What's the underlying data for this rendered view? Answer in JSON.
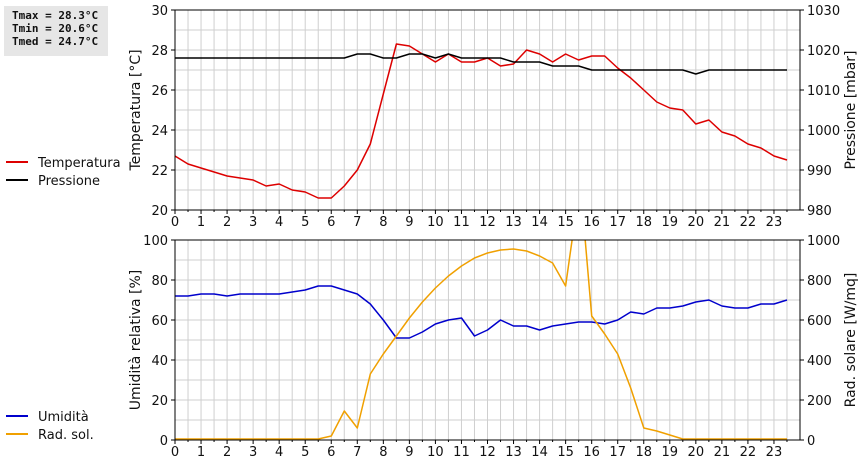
{
  "stats": {
    "tmax": "Tmax = 28.3°C",
    "tmin": "Tmin = 20.6°C",
    "tmed": "Tmed = 24.7°C"
  },
  "colors": {
    "temperatura": "#dd0000",
    "pressione": "#000000",
    "umidita": "#0000cc",
    "radsol": "#f0a000",
    "grid": "#cfcfcf"
  },
  "chart_data": [
    {
      "type": "line",
      "ylabel": "Temperatura [°C]",
      "y2label": "Pressione [mbar]",
      "ylim": [
        20,
        30
      ],
      "y2lim": [
        980,
        1030
      ],
      "xlim": [
        0,
        24
      ],
      "yticks": [
        "20",
        "22",
        "24",
        "26",
        "28",
        "30"
      ],
      "y2ticks": [
        "980",
        "990",
        "1000",
        "1010",
        "1020",
        "1030"
      ],
      "xticks": [
        "0",
        "1",
        "2",
        "3",
        "4",
        "5",
        "6",
        "7",
        "8",
        "9",
        "10",
        "11",
        "12",
        "13",
        "14",
        "15",
        "16",
        "17",
        "18",
        "19",
        "20",
        "21",
        "22",
        "23"
      ],
      "grid": true,
      "legend": [
        "Temperatura",
        "Pressione"
      ],
      "series": [
        {
          "name": "Temperatura",
          "axis": "left",
          "x": [
            0,
            0.5,
            1,
            1.5,
            2,
            2.5,
            3,
            3.5,
            4,
            4.5,
            5,
            5.5,
            6,
            6.5,
            7,
            7.5,
            8,
            8.5,
            9,
            9.5,
            10,
            10.5,
            11,
            11.5,
            12,
            12.5,
            13,
            13.5,
            14,
            14.5,
            15,
            15.5,
            16,
            16.5,
            17,
            17.5,
            18,
            18.5,
            19,
            19.5,
            20,
            20.5,
            21,
            21.5,
            22,
            22.5,
            23,
            23.5
          ],
          "y": [
            22.7,
            22.3,
            22.1,
            21.9,
            21.7,
            21.6,
            21.5,
            21.2,
            21.3,
            21.0,
            20.9,
            20.6,
            20.6,
            21.2,
            22.0,
            23.3,
            25.8,
            28.3,
            28.2,
            27.8,
            27.4,
            27.8,
            27.4,
            27.4,
            27.6,
            27.2,
            27.3,
            28.0,
            27.8,
            27.4,
            27.8,
            27.5,
            27.7,
            27.7,
            27.1,
            26.6,
            26.0,
            25.4,
            25.1,
            25.0,
            24.3,
            24.5,
            23.9,
            23.7,
            23.3,
            23.1,
            22.7,
            22.5
          ]
        },
        {
          "name": "Pressione",
          "axis": "right",
          "x": [
            0,
            0.5,
            1,
            1.5,
            2,
            2.5,
            3,
            3.5,
            4,
            4.5,
            5,
            5.5,
            6,
            6.5,
            7,
            7.5,
            8,
            8.5,
            9,
            9.5,
            10,
            10.5,
            11,
            11.5,
            12,
            12.5,
            13,
            13.5,
            14,
            14.5,
            15,
            15.5,
            16,
            16.5,
            17,
            17.5,
            18,
            18.5,
            19,
            19.5,
            20,
            20.5,
            21,
            21.5,
            22,
            22.5,
            23,
            23.5
          ],
          "y": [
            1018,
            1018,
            1018,
            1018,
            1018,
            1018,
            1018,
            1018,
            1018,
            1018,
            1018,
            1018,
            1018,
            1018,
            1019,
            1019,
            1018,
            1018,
            1019,
            1019,
            1018,
            1019,
            1018,
            1018,
            1018,
            1018,
            1017,
            1017,
            1017,
            1016,
            1016,
            1016,
            1015,
            1015,
            1015,
            1015,
            1015,
            1015,
            1015,
            1015,
            1014,
            1015,
            1015,
            1015,
            1015,
            1015,
            1015,
            1015
          ]
        }
      ]
    },
    {
      "type": "line",
      "ylabel": "Umidità relativa [%]",
      "y2label": "Rad. solare [W/mq]",
      "ylim": [
        0,
        100
      ],
      "y2lim": [
        0,
        1000
      ],
      "xlim": [
        0,
        24
      ],
      "yticks": [
        "0",
        "20",
        "40",
        "60",
        "80",
        "100"
      ],
      "y2ticks": [
        "0",
        "200",
        "400",
        "600",
        "800",
        "1000"
      ],
      "xticks": [
        "0",
        "1",
        "2",
        "3",
        "4",
        "5",
        "6",
        "7",
        "8",
        "9",
        "10",
        "11",
        "12",
        "13",
        "14",
        "15",
        "16",
        "17",
        "18",
        "19",
        "20",
        "21",
        "22",
        "23"
      ],
      "grid": true,
      "legend": [
        "Umidità",
        "Rad. sol."
      ],
      "series": [
        {
          "name": "Umidità",
          "axis": "left",
          "x": [
            0,
            0.5,
            1,
            1.5,
            2,
            2.5,
            3,
            3.5,
            4,
            4.5,
            5,
            5.5,
            6,
            6.5,
            7,
            7.5,
            8,
            8.5,
            9,
            9.5,
            10,
            10.5,
            11,
            11.5,
            12,
            12.5,
            13,
            13.5,
            14,
            14.5,
            15,
            15.5,
            16,
            16.5,
            17,
            17.5,
            18,
            18.5,
            19,
            19.5,
            20,
            20.5,
            21,
            21.5,
            22,
            22.5,
            23,
            23.5
          ],
          "y": [
            72,
            72,
            73,
            73,
            72,
            73,
            73,
            73,
            73,
            74,
            75,
            77,
            77,
            75,
            73,
            68,
            60,
            51,
            51,
            54,
            58,
            60,
            61,
            52,
            55,
            60,
            57,
            57,
            55,
            57,
            58,
            59,
            59,
            58,
            60,
            64,
            63,
            66,
            66,
            67,
            69,
            70,
            67,
            66,
            66,
            68,
            68,
            70
          ]
        },
        {
          "name": "Rad. sol.",
          "axis": "right",
          "x": [
            0,
            0.5,
            1,
            1.5,
            2,
            2.5,
            3,
            3.5,
            4,
            4.5,
            5,
            5.5,
            6,
            6.5,
            7,
            7.5,
            8,
            8.5,
            9,
            9.5,
            10,
            10.5,
            11,
            11.5,
            12,
            12.5,
            13,
            13.5,
            14,
            14.5,
            15,
            15.25,
            15.5,
            15.75,
            16,
            16.5,
            17,
            17.5,
            18,
            18.5,
            19,
            19.5,
            20,
            20.5,
            21,
            21.5,
            22,
            22.5,
            23,
            23.5
          ],
          "y": [
            5,
            5,
            5,
            5,
            5,
            5,
            5,
            5,
            5,
            5,
            5,
            5,
            20,
            145,
            60,
            330,
            430,
            520,
            610,
            690,
            760,
            820,
            870,
            910,
            935,
            950,
            955,
            945,
            920,
            885,
            770,
            1000,
            1050,
            1000,
            620,
            530,
            430,
            260,
            60,
            45,
            25,
            5,
            5,
            5,
            5,
            5,
            5,
            5,
            5,
            5
          ]
        }
      ]
    }
  ]
}
